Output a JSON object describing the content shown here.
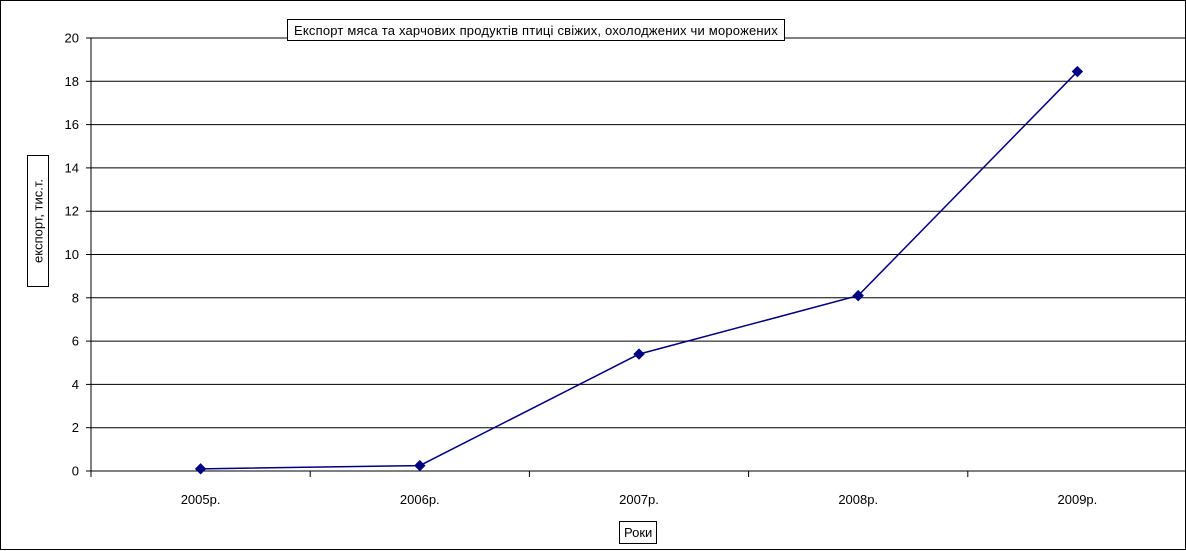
{
  "chart_data": {
    "type": "line",
    "title": "Експорт мяса та харчових продуктів птиці свіжих, охолоджених чи морожених",
    "xlabel": "Роки",
    "ylabel": "експорт, тис.т.",
    "categories": [
      "2005р.",
      "2006р.",
      "2007р.",
      "2008р.",
      "2009р."
    ],
    "series": [
      {
        "values": [
          0.1,
          0.25,
          5.4,
          8.1,
          18.45
        ]
      }
    ],
    "ylim": [
      0,
      20
    ],
    "yticks": [
      0,
      2,
      4,
      6,
      8,
      10,
      12,
      14,
      16,
      18,
      20
    ],
    "grid": true,
    "legend": "none",
    "colors": {
      "line": "#000080",
      "marker": "#000080",
      "grid": "#000000"
    }
  }
}
